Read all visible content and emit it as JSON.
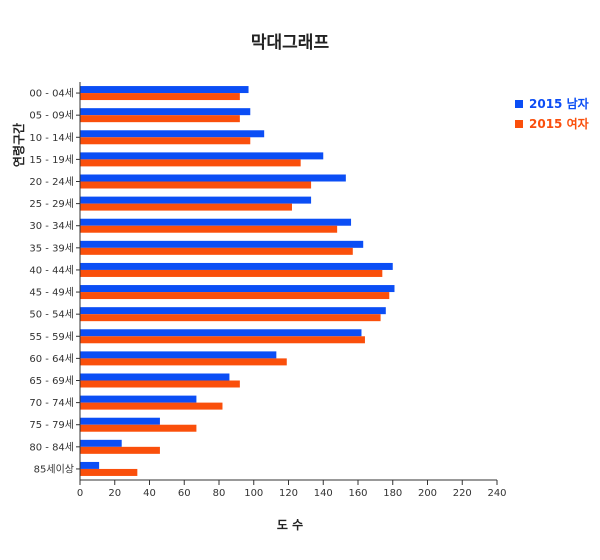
{
  "chart_data": {
    "type": "bar",
    "orientation": "horizontal",
    "title": "막대그래프",
    "xlabel": "도 수",
    "ylabel": "연령구간",
    "xlim": [
      0,
      240
    ],
    "x_ticks": [
      "0",
      "20",
      "40",
      "60",
      "80",
      "100",
      "120",
      "140",
      "160",
      "180",
      "200",
      "220",
      "240"
    ],
    "grid": false,
    "legend_position": "top-right",
    "categories": [
      "00 - 04세",
      "05 - 09세",
      "10 - 14세",
      "15 - 19세",
      "20 - 24세",
      "25 - 29세",
      "30 - 34세",
      "35 - 39세",
      "40 - 44세",
      "45 - 49세",
      "50 - 54세",
      "55 - 59세",
      "60 - 64세",
      "65 - 69세",
      "70 - 74세",
      "75 - 79세",
      "80 - 84세",
      "85세이상"
    ],
    "series": [
      {
        "name": "2015 남자",
        "color": "#0b4ef5",
        "values": [
          97,
          98,
          106,
          140,
          153,
          133,
          156,
          163,
          180,
          181,
          176,
          162,
          113,
          86,
          67,
          46,
          24,
          11
        ]
      },
      {
        "name": "2015 여자",
        "color": "#fa4f0b",
        "values": [
          92,
          92,
          98,
          127,
          133,
          122,
          148,
          157,
          174,
          178,
          173,
          164,
          119,
          92,
          82,
          67,
          46,
          33
        ]
      }
    ]
  }
}
